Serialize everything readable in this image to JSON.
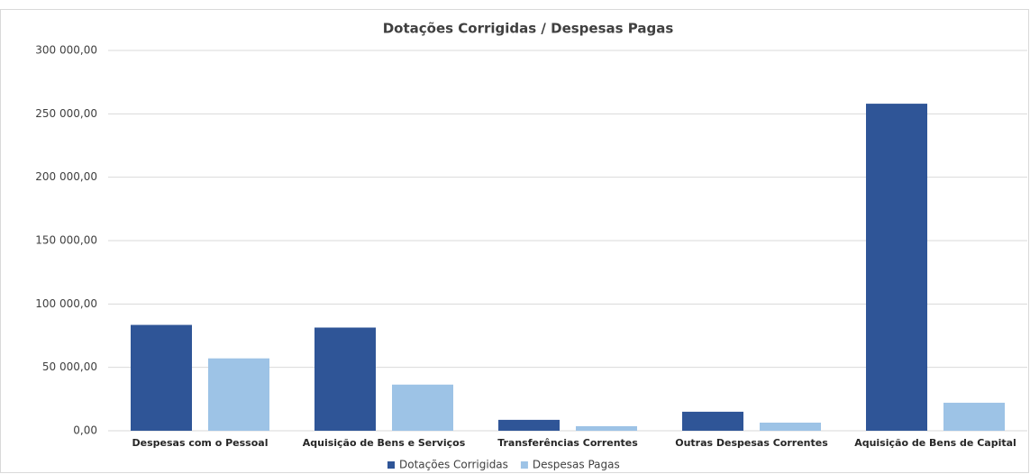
{
  "chart_data": {
    "type": "bar",
    "title": "Dotações Corrigidas / Despesas Pagas",
    "categories": [
      "Despesas com o Pessoal",
      "Aquisição de Bens e Serviços",
      "Transferências Correntes",
      "Outras Despesas Correntes",
      "Aquisição de Bens de Capital"
    ],
    "series": [
      {
        "name": "Dotações Corrigidas",
        "color": "#2f5597",
        "values": [
          83500,
          81400,
          8600,
          15000,
          258000
        ]
      },
      {
        "name": "Despesas Pagas",
        "color": "#9dc3e6",
        "values": [
          57100,
          36400,
          3600,
          6400,
          22100
        ]
      }
    ],
    "ylim": [
      0,
      300000
    ],
    "yticks": [
      {
        "value": 0,
        "label": "0,00"
      },
      {
        "value": 50000,
        "label": "50 000,00"
      },
      {
        "value": 100000,
        "label": "100 000,00"
      },
      {
        "value": 150000,
        "label": "150 000,00"
      },
      {
        "value": 200000,
        "label": "200 000,00"
      },
      {
        "value": 250000,
        "label": "250 000,00"
      },
      {
        "value": 300000,
        "label": "300 000,00"
      }
    ],
    "grid": true,
    "legend": "bottom"
  }
}
